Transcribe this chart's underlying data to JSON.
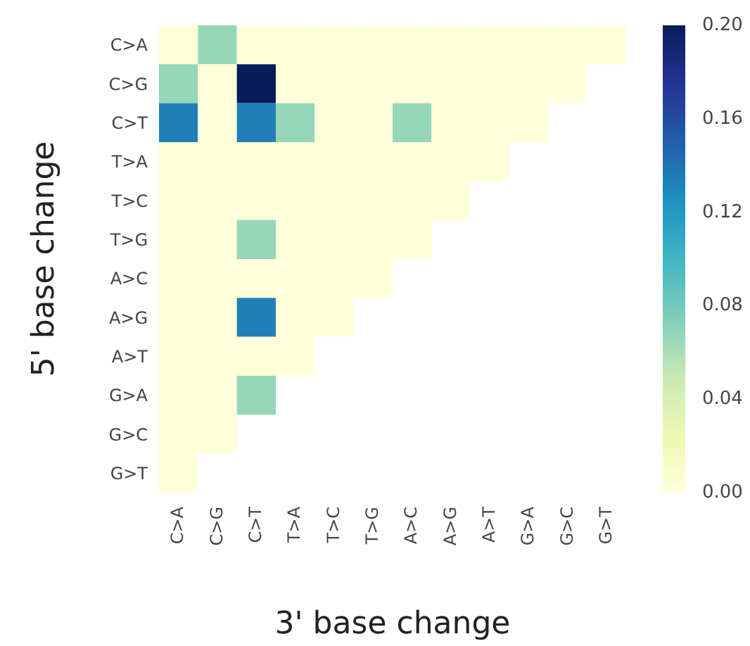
{
  "chart_data": {
    "type": "heatmap",
    "xlabel": "3' base change",
    "ylabel": "5' base change",
    "categories": [
      "C>A",
      "C>G",
      "C>T",
      "T>A",
      "T>C",
      "T>G",
      "A>C",
      "A>G",
      "A>T",
      "G>A",
      "G>C",
      "G>T"
    ],
    "y_categories": [
      "C>A",
      "C>G",
      "C>T",
      "T>A",
      "T>C",
      "T>G",
      "A>C",
      "A>G",
      "A>T",
      "G>A",
      "G>C",
      "G>T"
    ],
    "cells": [
      [
        0,
        0.067,
        0,
        0,
        0,
        0,
        0,
        0,
        0,
        0,
        0,
        0
      ],
      [
        0.067,
        0,
        0.2,
        0,
        0,
        0,
        0,
        0,
        0,
        0,
        0,
        null
      ],
      [
        0.133,
        0,
        0.133,
        0.067,
        0,
        0,
        0.067,
        0,
        0,
        0,
        null,
        null
      ],
      [
        0,
        0,
        0,
        0,
        0,
        0,
        0,
        0,
        0,
        null,
        null,
        null
      ],
      [
        0,
        0,
        0,
        0,
        0,
        0,
        0,
        0,
        null,
        null,
        null,
        null
      ],
      [
        0,
        0,
        0.067,
        0,
        0,
        0,
        0,
        null,
        null,
        null,
        null,
        null
      ],
      [
        0,
        0,
        0,
        0,
        0,
        0,
        null,
        null,
        null,
        null,
        null,
        null
      ],
      [
        0,
        0,
        0.133,
        0,
        0,
        null,
        null,
        null,
        null,
        null,
        null,
        null
      ],
      [
        0,
        0,
        0,
        0,
        null,
        null,
        null,
        null,
        null,
        null,
        null,
        null
      ],
      [
        0,
        0,
        0.067,
        null,
        null,
        null,
        null,
        null,
        null,
        null,
        null,
        null
      ],
      [
        0,
        0,
        null,
        null,
        null,
        null,
        null,
        null,
        null,
        null,
        null,
        null
      ],
      [
        0,
        null,
        null,
        null,
        null,
        null,
        null,
        null,
        null,
        null,
        null,
        null
      ]
    ],
    "clim": [
      0,
      0.2
    ],
    "cticks": [
      {
        "value": 0,
        "label": "0.00"
      },
      {
        "value": 0.04,
        "label": "0.04"
      },
      {
        "value": 0.08,
        "label": "0.08"
      },
      {
        "value": 0.12,
        "label": "0.12"
      },
      {
        "value": 0.16,
        "label": "0.16"
      },
      {
        "value": 0.2,
        "label": "0.20"
      }
    ]
  }
}
